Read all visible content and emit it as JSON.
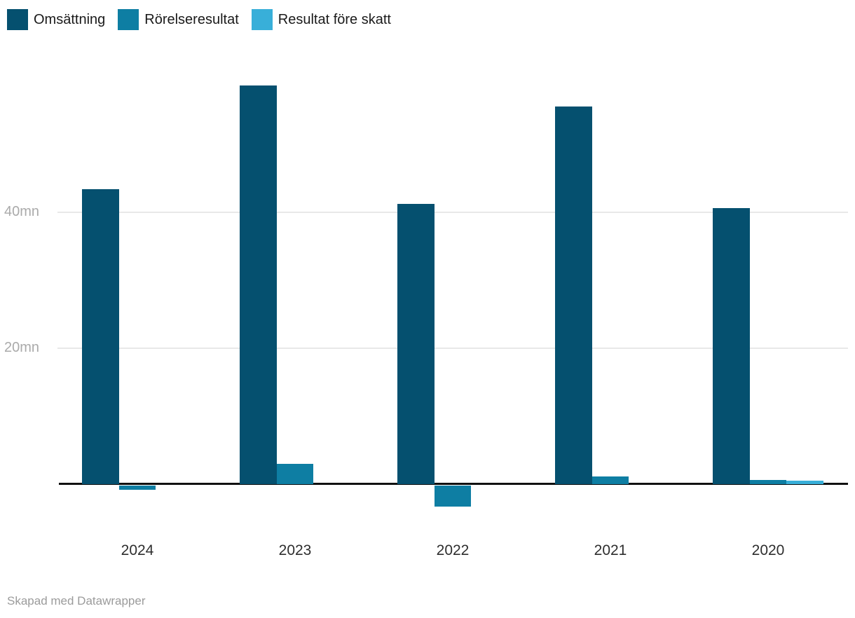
{
  "legend": {
    "position": "top-left"
  },
  "footer": {
    "attribution": "Skapad med Datawrapper"
  },
  "chart_data": {
    "type": "bar",
    "title": "",
    "xlabel": "",
    "ylabel": "",
    "unit": "mn",
    "categories": [
      "2024",
      "2023",
      "2022",
      "2021",
      "2020"
    ],
    "series": [
      {
        "name": "Omsättning",
        "color": "#05506f",
        "values": [
          43.4,
          58.7,
          41.2,
          55.6,
          40.6
        ]
      },
      {
        "name": "Rörelseresultat",
        "color": "#0e7ea3",
        "values": [
          -0.6,
          3.0,
          -3.1,
          1.1,
          0.6
        ]
      },
      {
        "name": "Resultat före skatt",
        "color": "#38afd9",
        "values": [
          0,
          0,
          0,
          0,
          0.5
        ]
      }
    ],
    "y_ticks": [
      {
        "value": 20,
        "label": "20mn"
      },
      {
        "value": 40,
        "label": "40mn"
      }
    ],
    "ylim": [
      -5,
      60
    ],
    "grid": "horizontal",
    "baseline": 0,
    "legend_position": "top"
  }
}
